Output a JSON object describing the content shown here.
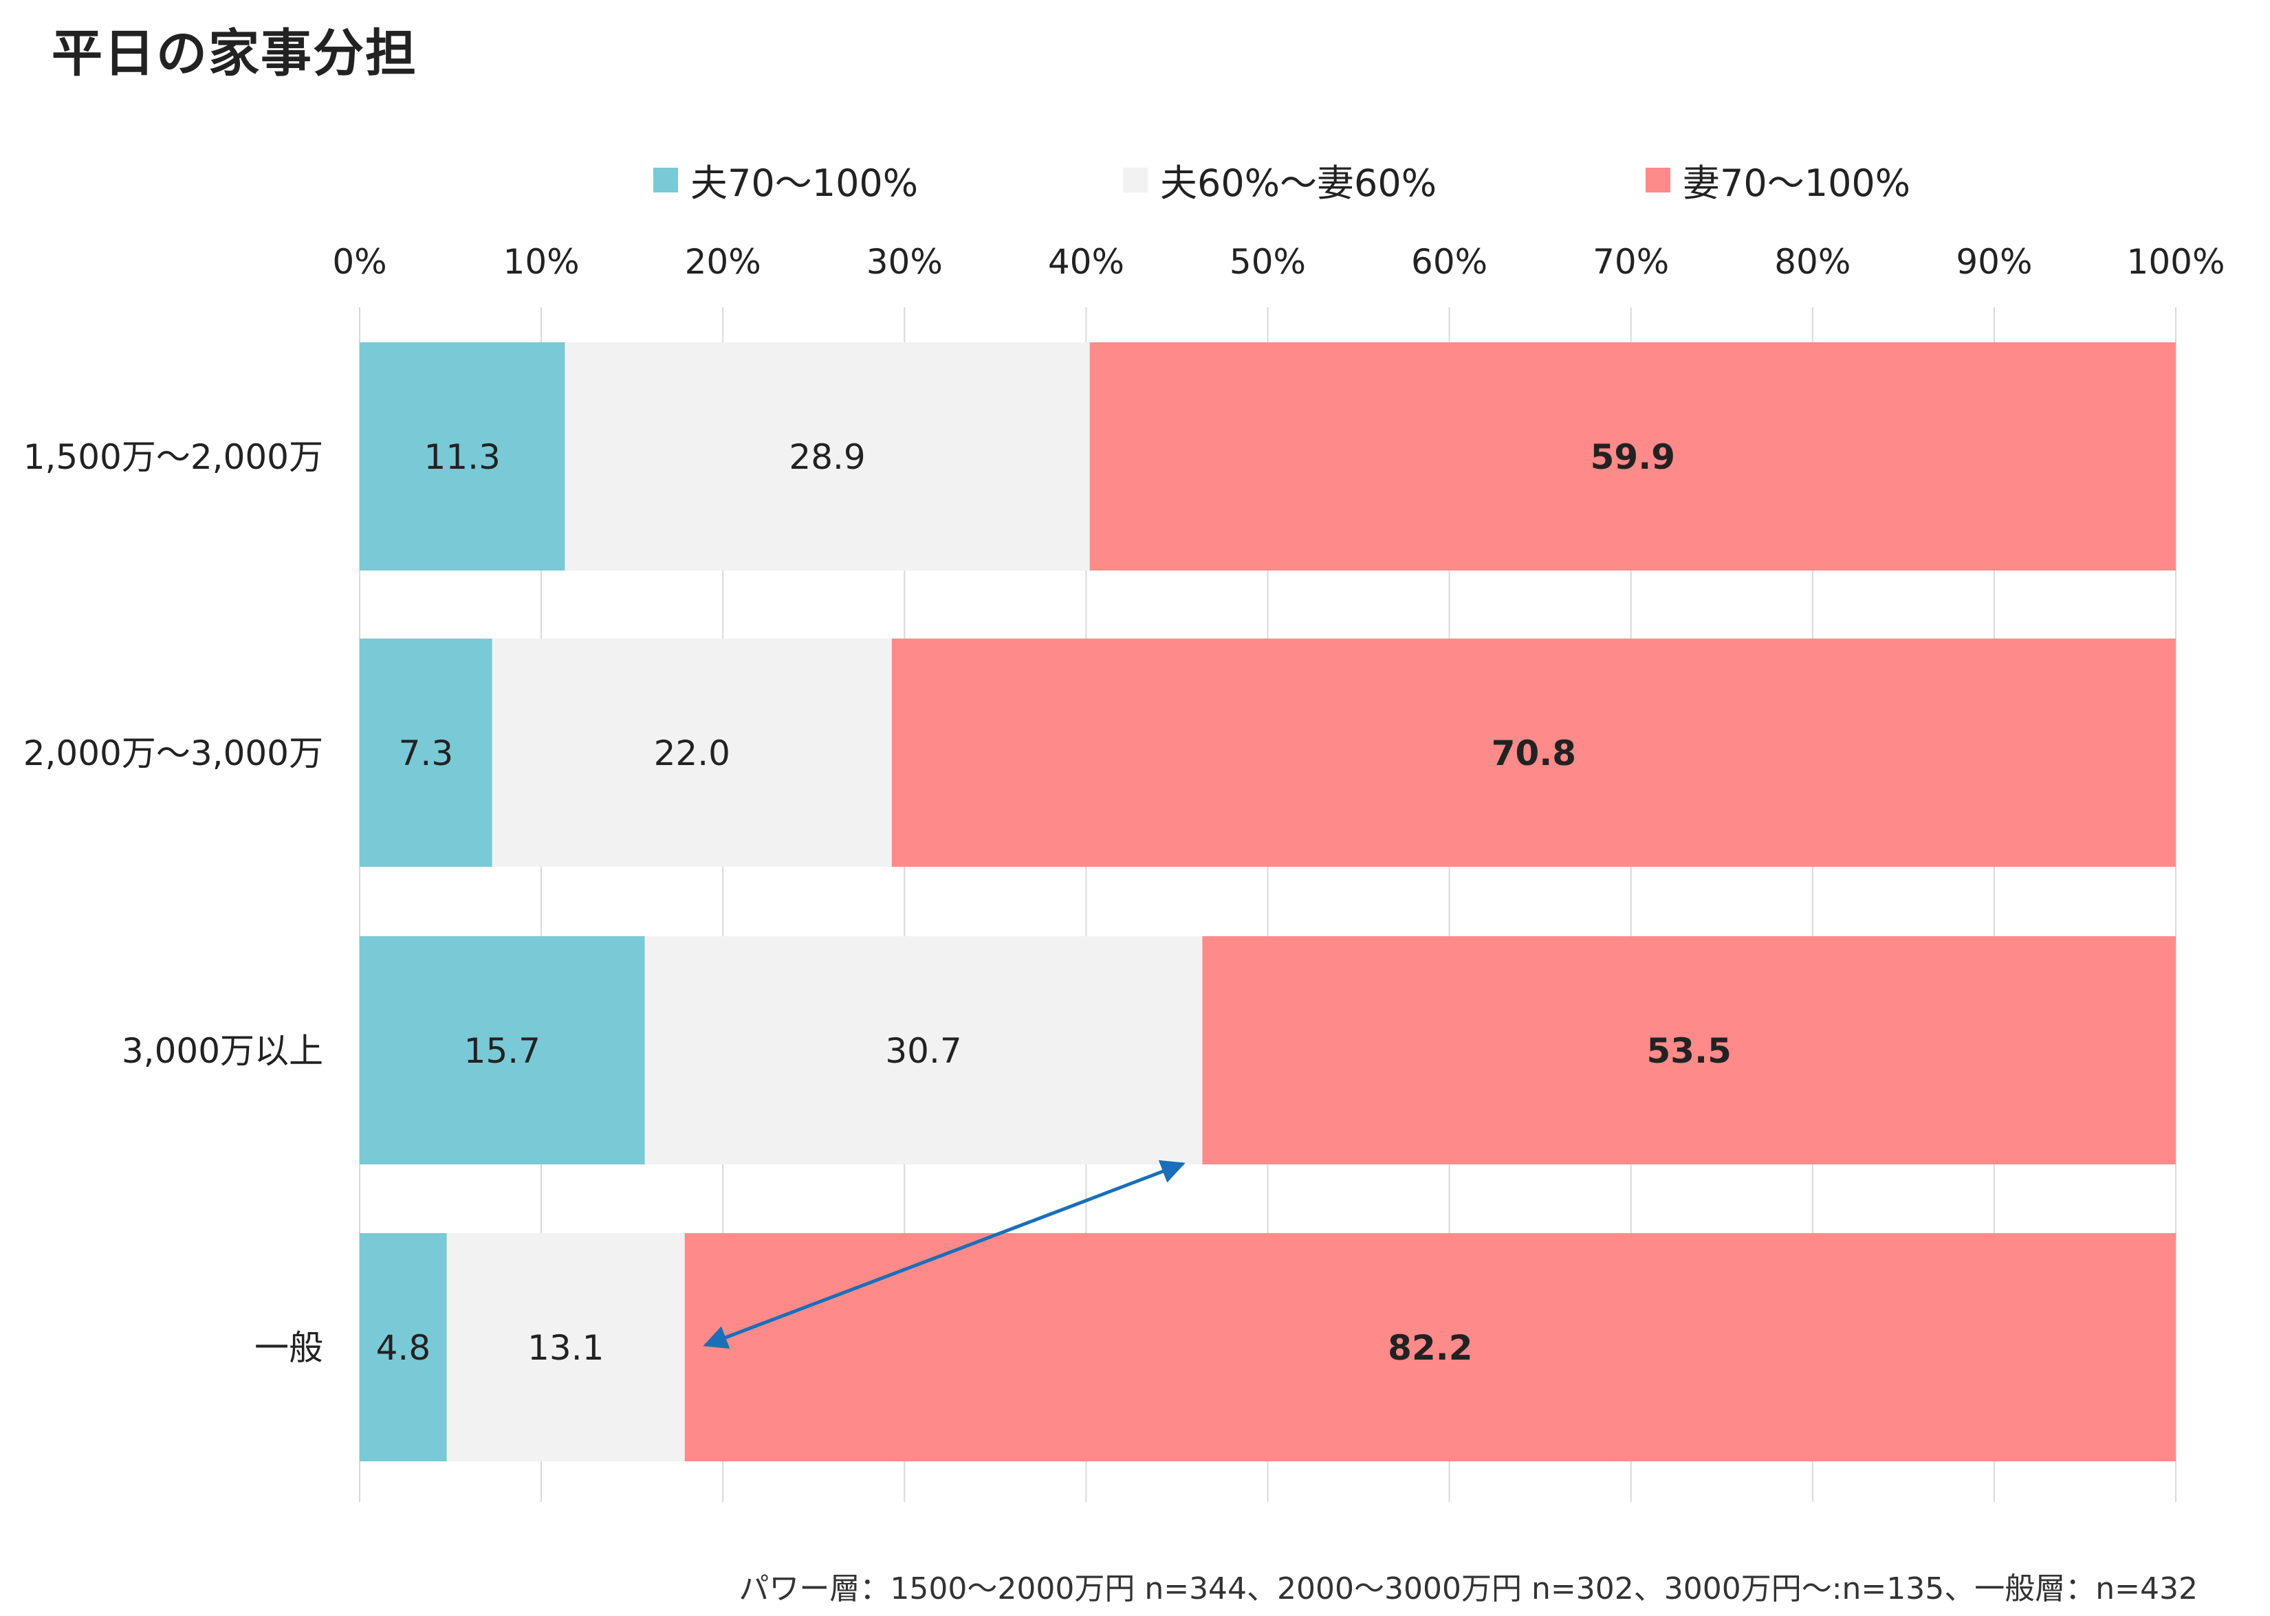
{
  "title": "平日の家事分担",
  "note": "パワー層：1500〜2000万円 n=344、2000〜3000万円 n=302、3000万円〜:n=135、一般層：n=432",
  "colors": {
    "husband": "#7ac9d6",
    "shared": "#f2f2f2",
    "wife": "#ff8a8a",
    "grid": "#d9d9d9",
    "arrow": "#1a6fb8"
  },
  "chart_data": {
    "type": "bar",
    "orientation": "horizontal",
    "stacked": true,
    "title": "平日の家事分担",
    "categories": [
      "1,500万〜2,000万",
      "2,000万〜3,000万",
      "3,000万以上",
      "一般"
    ],
    "series": [
      {
        "name": "夫70〜100%",
        "values": [
          11.3,
          7.3,
          15.7,
          4.8
        ],
        "color": "#7ac9d6",
        "bold_labels": false
      },
      {
        "name": "夫60%〜妻60%",
        "values": [
          28.9,
          22.0,
          30.7,
          13.1
        ],
        "color": "#f2f2f2",
        "bold_labels": false
      },
      {
        "name": "妻70〜100%",
        "values": [
          59.9,
          70.8,
          53.5,
          82.2
        ],
        "color": "#ff8a8a",
        "bold_labels": true
      }
    ],
    "value_labels": [
      [
        "11.3",
        "28.9",
        "59.9"
      ],
      [
        "7.3",
        "22.0",
        "70.8"
      ],
      [
        "15.7",
        "30.7",
        "53.5"
      ],
      [
        "4.8",
        "13.1",
        "82.2"
      ]
    ],
    "x_ticks": [
      "0%",
      "10%",
      "20%",
      "30%",
      "40%",
      "50%",
      "60%",
      "70%",
      "80%",
      "90%",
      "100%"
    ],
    "xlim": [
      0,
      100
    ],
    "grid": true,
    "legend_position": "top",
    "annotation": "double-headed arrow between 一般 (17.9%) and 3,000万以上 (46.4%) wife-share boundaries"
  }
}
